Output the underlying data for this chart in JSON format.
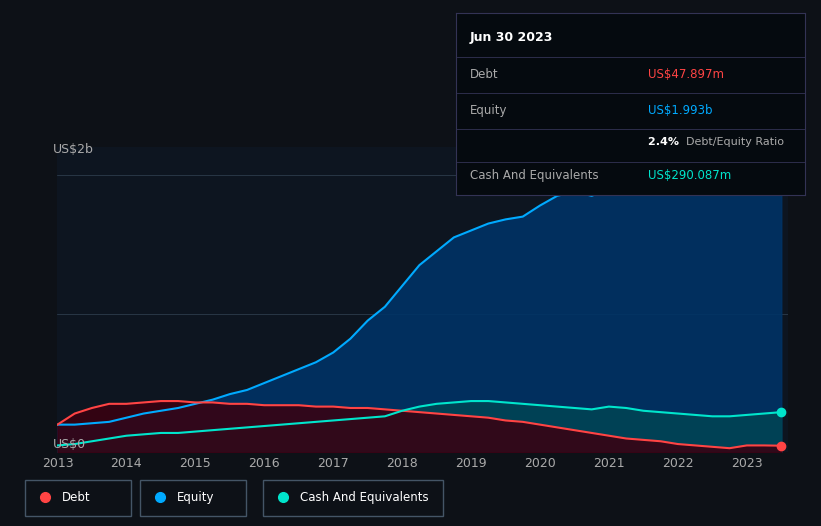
{
  "background_color": "#0d1117",
  "chart_bg_color": "#0d1520",
  "ylabel": "US$2b",
  "y0label": "US$0",
  "equity_color": "#00aaff",
  "debt_color": "#ff4444",
  "cash_color": "#00e5cc",
  "equity_fill": "#003366",
  "debt_fill": "#3a0010",
  "cash_fill": "#004455",
  "tooltip": {
    "date": "Jun 30 2023",
    "debt_label": "Debt",
    "debt_value": "US$47.897m",
    "debt_color": "#ff4444",
    "equity_label": "Equity",
    "equity_value": "US$1.993b",
    "equity_color": "#00aaff",
    "ratio_label": "Debt/Equity Ratio",
    "ratio_value": "2.4%",
    "cash_label": "Cash And Equivalents",
    "cash_value": "US$290.087m",
    "cash_color": "#00e5cc"
  },
  "years": [
    2013.0,
    2013.25,
    2013.5,
    2013.75,
    2014.0,
    2014.25,
    2014.5,
    2014.75,
    2015.0,
    2015.25,
    2015.5,
    2015.75,
    2016.0,
    2016.25,
    2016.5,
    2016.75,
    2017.0,
    2017.25,
    2017.5,
    2017.75,
    2018.0,
    2018.25,
    2018.5,
    2018.75,
    2019.0,
    2019.25,
    2019.5,
    2019.75,
    2020.0,
    2020.25,
    2020.5,
    2020.75,
    2021.0,
    2021.25,
    2021.5,
    2021.75,
    2022.0,
    2022.25,
    2022.5,
    2022.75,
    2023.0,
    2023.25,
    2023.5
  ],
  "equity": [
    0.2,
    0.2,
    0.21,
    0.22,
    0.25,
    0.28,
    0.3,
    0.32,
    0.35,
    0.38,
    0.42,
    0.45,
    0.5,
    0.55,
    0.6,
    0.65,
    0.72,
    0.82,
    0.95,
    1.05,
    1.2,
    1.35,
    1.45,
    1.55,
    1.6,
    1.65,
    1.68,
    1.7,
    1.78,
    1.85,
    1.88,
    1.85,
    1.9,
    1.92,
    1.93,
    1.93,
    1.95,
    1.96,
    1.97,
    1.97,
    1.98,
    1.99,
    1.993
  ],
  "debt": [
    0.2,
    0.28,
    0.32,
    0.35,
    0.35,
    0.36,
    0.37,
    0.37,
    0.36,
    0.36,
    0.35,
    0.35,
    0.34,
    0.34,
    0.34,
    0.33,
    0.33,
    0.32,
    0.32,
    0.31,
    0.3,
    0.29,
    0.28,
    0.27,
    0.26,
    0.25,
    0.23,
    0.22,
    0.2,
    0.18,
    0.16,
    0.14,
    0.12,
    0.1,
    0.09,
    0.08,
    0.06,
    0.05,
    0.04,
    0.03,
    0.05,
    0.05,
    0.048
  ],
  "cash": [
    0.05,
    0.06,
    0.08,
    0.1,
    0.12,
    0.13,
    0.14,
    0.14,
    0.15,
    0.16,
    0.17,
    0.18,
    0.19,
    0.2,
    0.21,
    0.22,
    0.23,
    0.24,
    0.25,
    0.26,
    0.3,
    0.33,
    0.35,
    0.36,
    0.37,
    0.37,
    0.36,
    0.35,
    0.34,
    0.33,
    0.32,
    0.31,
    0.33,
    0.32,
    0.3,
    0.29,
    0.28,
    0.27,
    0.26,
    0.26,
    0.27,
    0.28,
    0.29
  ],
  "ylim": [
    0,
    2.2
  ],
  "xlim": [
    2013.0,
    2023.6
  ],
  "legend_items": [
    {
      "label": "Debt",
      "color": "#ff4444"
    },
    {
      "label": "Equity",
      "color": "#00aaff"
    },
    {
      "label": "Cash And Equivalents",
      "color": "#00e5cc"
    }
  ]
}
